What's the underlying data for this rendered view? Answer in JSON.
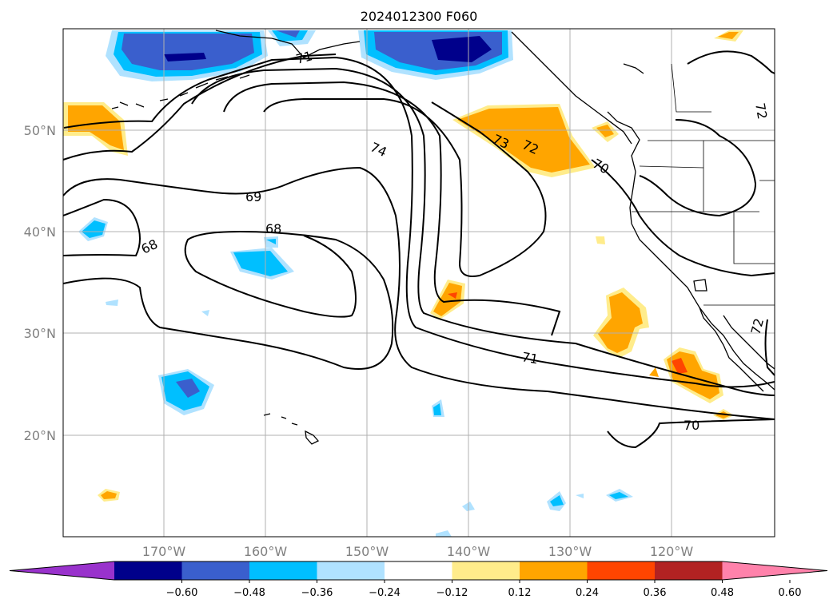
{
  "title": "2024012300 F060",
  "lat_labels": [
    "50°N",
    "40°N",
    "30°N",
    "20°N"
  ],
  "lon_labels": [
    "170°W",
    "160°W",
    "150°W",
    "140°W",
    "130°W",
    "120°W"
  ],
  "contour_labels": [
    "71",
    "74",
    "73",
    "72",
    "70",
    "69",
    "68",
    "68",
    "71",
    "70",
    "72",
    "72"
  ],
  "colorbar": {
    "tick_labels": [
      "−0.60",
      "−0.48",
      "−0.36",
      "−0.24",
      "−0.12",
      "0.12",
      "0.24",
      "0.36",
      "0.48",
      "0.60"
    ],
    "colors": [
      "#9932CC",
      "#00008B",
      "#3A5FCD",
      "#00BFFF",
      "#B0E2FF",
      "#FFFFFF",
      "#FFEC8B",
      "#FFA500",
      "#FF4500",
      "#B22222",
      "#FF82AB"
    ]
  },
  "anomaly_colors": {
    "light_blue": "#B0E2FF",
    "cyan": "#00BFFF",
    "blue": "#3A5FCD",
    "navy": "#00008B",
    "yellow": "#FFEC8B",
    "orange": "#FFA500",
    "red_orange": "#FF4500"
  }
}
